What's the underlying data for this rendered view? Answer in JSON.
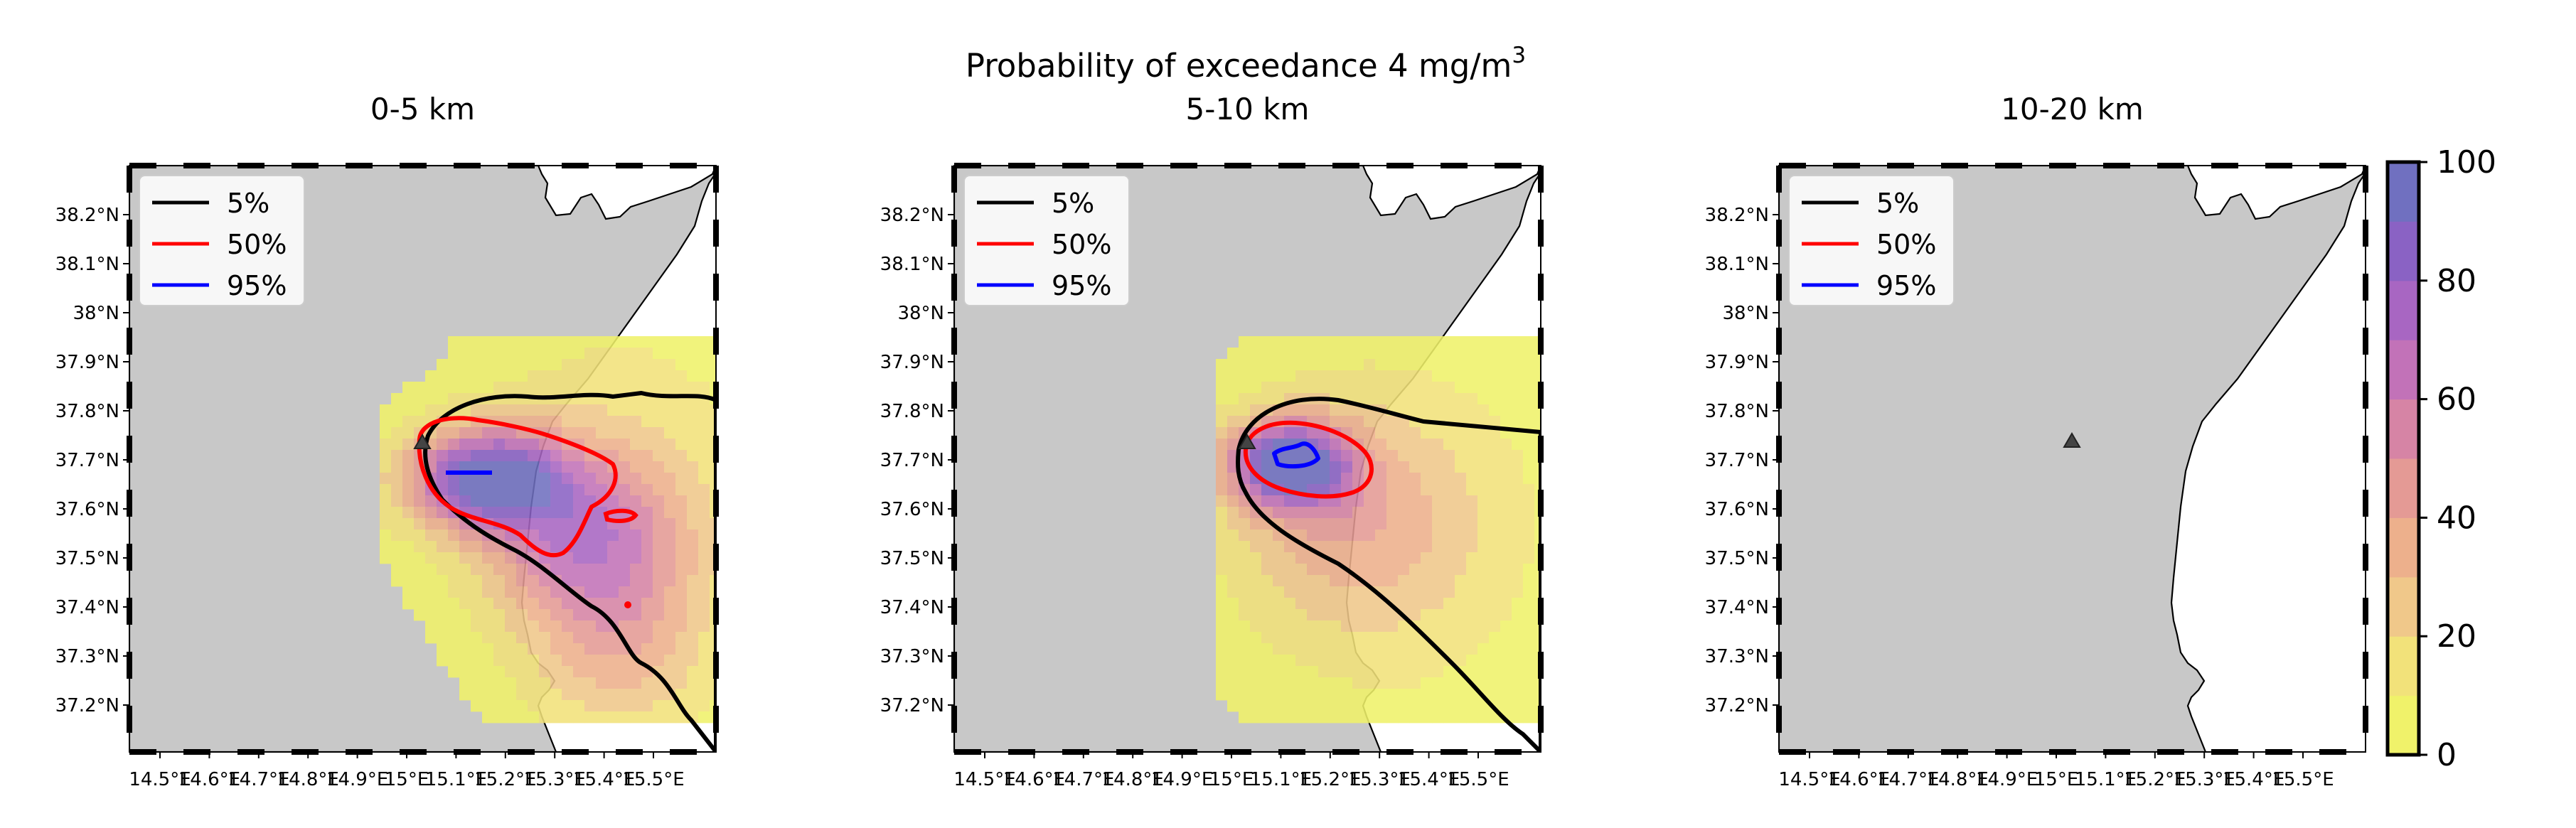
{
  "figure": {
    "suptitle_main": "Probability of exceedance 4 mg/m",
    "suptitle_sup": "3"
  },
  "chart_data": [
    {
      "type": "heatmap",
      "title": "0-5 km",
      "xlim": [
        14.39,
        15.59
      ],
      "ylim": [
        37.1,
        38.29
      ],
      "xticks": [
        "14.5°E",
        "14.6°E",
        "14.7°E",
        "14.8°E",
        "14.9°E",
        "15°E",
        "15.1°E",
        "15.2°E",
        "15.3°E",
        "15.4°E",
        "15.5°E"
      ],
      "yticks": [
        "37.2°N",
        "37.3°N",
        "37.4°N",
        "37.5°N",
        "37.6°N",
        "37.7°N",
        "37.8°N",
        "37.9°N",
        "38°N",
        "38.1°N",
        "38.2°N"
      ],
      "vent": {
        "lon": 15.0,
        "lat": 37.73
      },
      "field": {
        "center": [
          15.15,
          37.66
        ],
        "peak": 90,
        "extent": "14.95-15.59°E, 37.12-37.92°N"
      },
      "contours": [
        {
          "level": "5%",
          "color": "#000000"
        },
        {
          "level": "50%",
          "color": "#ff0000"
        },
        {
          "level": "95%",
          "color": "#0000ff"
        }
      ]
    },
    {
      "type": "heatmap",
      "title": "5-10 km",
      "xlim": [
        14.39,
        15.59
      ],
      "ylim": [
        37.1,
        38.29
      ],
      "xticks": [
        "14.5°E",
        "14.6°E",
        "14.7°E",
        "14.8°E",
        "14.9°E",
        "15°E",
        "15.1°E",
        "15.2°E",
        "15.3°E",
        "15.4°E",
        "15.5°E"
      ],
      "yticks": [
        "37.2°N",
        "37.3°N",
        "37.4°N",
        "37.5°N",
        "37.6°N",
        "37.7°N",
        "37.8°N",
        "37.9°N",
        "38°N",
        "38.1°N",
        "38.2°N"
      ],
      "vent": {
        "lon": 15.0,
        "lat": 37.73
      },
      "field": {
        "center": [
          15.1,
          37.7
        ],
        "peak": 95,
        "extent": "14.98-15.59°E, 37.12-37.92°N"
      },
      "contours": [
        {
          "level": "5%",
          "color": "#000000"
        },
        {
          "level": "50%",
          "color": "#ff0000"
        },
        {
          "level": "95%",
          "color": "#0000ff"
        }
      ]
    },
    {
      "type": "heatmap",
      "title": "10-20 km",
      "xlim": [
        14.39,
        15.59
      ],
      "ylim": [
        37.1,
        38.29
      ],
      "xticks": [
        "14.5°E",
        "14.6°E",
        "14.7°E",
        "14.8°E",
        "14.9°E",
        "15°E",
        "15.1°E",
        "15.2°E",
        "15.3°E",
        "15.4°E",
        "15.5°E"
      ],
      "yticks": [
        "37.2°N",
        "37.3°N",
        "37.4°N",
        "37.5°N",
        "37.6°N",
        "37.7°N",
        "37.8°N",
        "37.9°N",
        "38°N",
        "38.1°N",
        "38.2°N"
      ],
      "vent": {
        "lon": 15.0,
        "lat": 37.73
      },
      "field": null,
      "contours": [
        {
          "level": "5%",
          "color": "#000000"
        },
        {
          "level": "50%",
          "color": "#ff0000"
        },
        {
          "level": "95%",
          "color": "#0000ff"
        }
      ]
    }
  ],
  "colorbar": {
    "ticks": [
      "0",
      "20",
      "40",
      "60",
      "80",
      "100"
    ],
    "range": [
      0,
      100
    ],
    "colors": [
      "#f0f26a",
      "#f2e27a",
      "#f0c88a",
      "#edb08c",
      "#e49a95",
      "#d684a5",
      "#c272b8",
      "#a866c2",
      "#8a62c4",
      "#7070c0"
    ]
  },
  "colors": {
    "land": "#c8c8c8",
    "sea": "#ffffff",
    "contour_5": "#000000",
    "contour_50": "#ff0000",
    "contour_95": "#0000ff"
  }
}
